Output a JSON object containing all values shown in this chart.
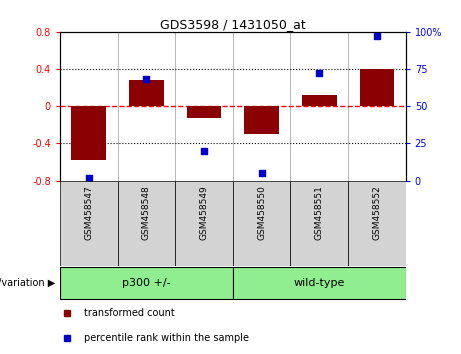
{
  "title": "GDS3598 / 1431050_at",
  "samples": [
    "GSM458547",
    "GSM458548",
    "GSM458549",
    "GSM458550",
    "GSM458551",
    "GSM458552"
  ],
  "bar_values": [
    -0.58,
    0.28,
    -0.13,
    -0.3,
    0.12,
    0.4
  ],
  "percentile_values": [
    2,
    68,
    20,
    5,
    72,
    97
  ],
  "group_labels": [
    "p300 +/-",
    "wild-type"
  ],
  "group_ranges": [
    [
      0,
      2
    ],
    [
      3,
      5
    ]
  ],
  "group_color": "#90EE90",
  "sample_box_color": "#d3d3d3",
  "bar_color": "#8B0000",
  "dot_color": "#0000CD",
  "ylim_left": [
    -0.8,
    0.8
  ],
  "ylim_right": [
    0,
    100
  ],
  "yticks_left": [
    -0.8,
    -0.4,
    0.0,
    0.4,
    0.8
  ],
  "yticks_right": [
    0,
    25,
    50,
    75,
    100
  ],
  "ytick_labels_left": [
    "-0.8",
    "-0.4",
    "0",
    "0.4",
    "0.8"
  ],
  "ytick_labels_right": [
    "0",
    "25",
    "50",
    "75",
    "100%"
  ],
  "hlines": [
    0.4,
    0.0,
    -0.4
  ],
  "hline_styles": [
    "dotted",
    "dashed",
    "dotted"
  ],
  "hline_colors": [
    "black",
    "red",
    "black"
  ],
  "legend_items": [
    {
      "label": "transformed count",
      "color": "#8B0000"
    },
    {
      "label": "percentile rank within the sample",
      "color": "#0000CD"
    }
  ],
  "group_label_text": "genotype/variation",
  "plot_bg_color": "white"
}
